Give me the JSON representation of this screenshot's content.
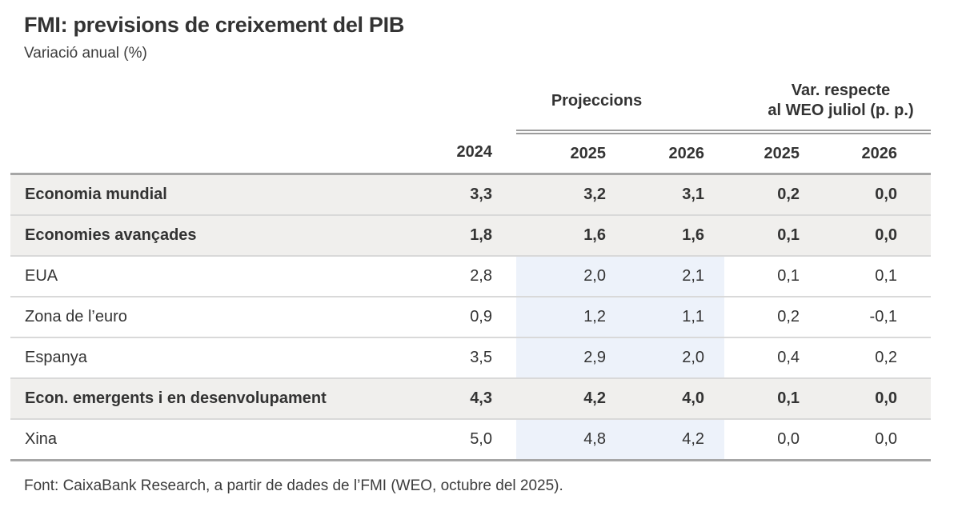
{
  "colors": {
    "text": "#333333",
    "row_highlight_gray": "#f0efed",
    "projection_band_blue": "#edf2fa",
    "heavy_border": "#a6a6a6",
    "light_border": "#d9d9d9",
    "double_rule": "#9c9c9c"
  },
  "chart_data": {
    "type": "table",
    "title": "FMI: previsions de creixement del PIB",
    "subtitle": "Variació anual (%)",
    "column_groups": [
      {
        "label": "Projeccions",
        "span": 2
      },
      {
        "label": "Var. respecte\nal WEO juliol (p. p.)",
        "span": 2
      }
    ],
    "year_columns": [
      "2024",
      "2025",
      "2026",
      "2025",
      "2026"
    ],
    "rows": [
      {
        "label": "Economia mundial",
        "values": [
          "3,3",
          "3,2",
          "3,1",
          "0,2",
          "0,0"
        ],
        "emphasis": true
      },
      {
        "label": "Economies avançades",
        "values": [
          "1,8",
          "1,6",
          "1,6",
          "0,1",
          "0,0"
        ],
        "emphasis": true
      },
      {
        "label": "EUA",
        "values": [
          "2,8",
          "2,0",
          "2,1",
          "0,1",
          "0,1"
        ],
        "emphasis": false
      },
      {
        "label": "Zona de l’euro",
        "values": [
          "0,9",
          "1,2",
          "1,1",
          "0,2",
          "-0,1"
        ],
        "emphasis": false
      },
      {
        "label": "Espanya",
        "values": [
          "3,5",
          "2,9",
          "2,0",
          "0,4",
          "0,2"
        ],
        "emphasis": false
      },
      {
        "label": "Econ. emergents i en desenvolupament",
        "values": [
          "4,3",
          "4,2",
          "4,0",
          "0,1",
          "0,0"
        ],
        "emphasis": true
      },
      {
        "label": "Xina",
        "values": [
          "5,0",
          "4,8",
          "4,2",
          "0,0",
          "0,0"
        ],
        "emphasis": false
      }
    ],
    "source": "Font: CaixaBank Research, a partir de dades de l’FMI (WEO, octubre del 2025)."
  }
}
